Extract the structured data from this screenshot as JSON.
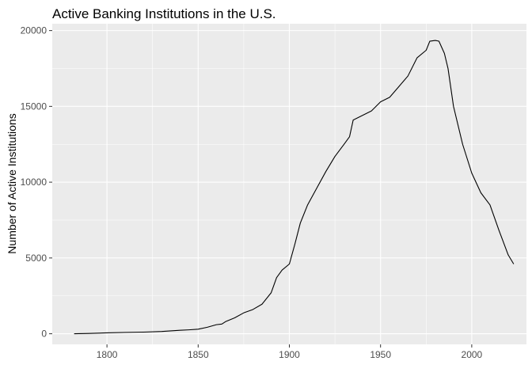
{
  "chart_data": {
    "type": "line",
    "title": "Active Banking Institutions in the U.S.",
    "xlabel": "",
    "ylabel": "Number of Active Institutions",
    "xlim": [
      1770,
      2030
    ],
    "ylim": [
      -700,
      20450
    ],
    "x_ticks": [
      1800,
      1850,
      1900,
      1950,
      2000
    ],
    "x_tick_labels": [
      "1800",
      "1850",
      "1900",
      "1950",
      "2000"
    ],
    "y_ticks": [
      0,
      5000,
      10000,
      15000,
      20000
    ],
    "y_tick_labels": [
      "0",
      "5000",
      "10000",
      "15000",
      "20000"
    ],
    "grid": true,
    "legend": "none",
    "colors": {
      "panel": "#ebebeb",
      "grid": "#ffffff",
      "line": "#000000",
      "tick_text": "#4d4d4d"
    },
    "series": [
      {
        "x": [
          1782,
          1790,
          1800,
          1810,
          1820,
          1830,
          1840,
          1845,
          1850,
          1855,
          1860,
          1863,
          1865,
          1870,
          1875,
          1880,
          1885,
          1890,
          1893,
          1896,
          1900,
          1903,
          1906,
          1910,
          1915,
          1920,
          1925,
          1930,
          1933,
          1935,
          1940,
          1945,
          1950,
          1955,
          1960,
          1965,
          1970,
          1975,
          1977,
          1980,
          1982,
          1985,
          1987,
          1990,
          1995,
          2000,
          2005,
          2010,
          2015,
          2020,
          2023
        ],
        "y": [
          0,
          20,
          60,
          90,
          110,
          150,
          230,
          260,
          300,
          430,
          600,
          640,
          800,
          1050,
          1380,
          1600,
          1950,
          2700,
          3700,
          4200,
          4600,
          5900,
          7300,
          8500,
          9600,
          10700,
          11700,
          12500,
          13000,
          14100,
          14400,
          14700,
          15300,
          15600,
          16300,
          17000,
          18200,
          18700,
          19300,
          19350,
          19300,
          18500,
          17500,
          15000,
          12500,
          10600,
          9300,
          8500,
          6800,
          5200,
          4600
        ]
      }
    ]
  }
}
